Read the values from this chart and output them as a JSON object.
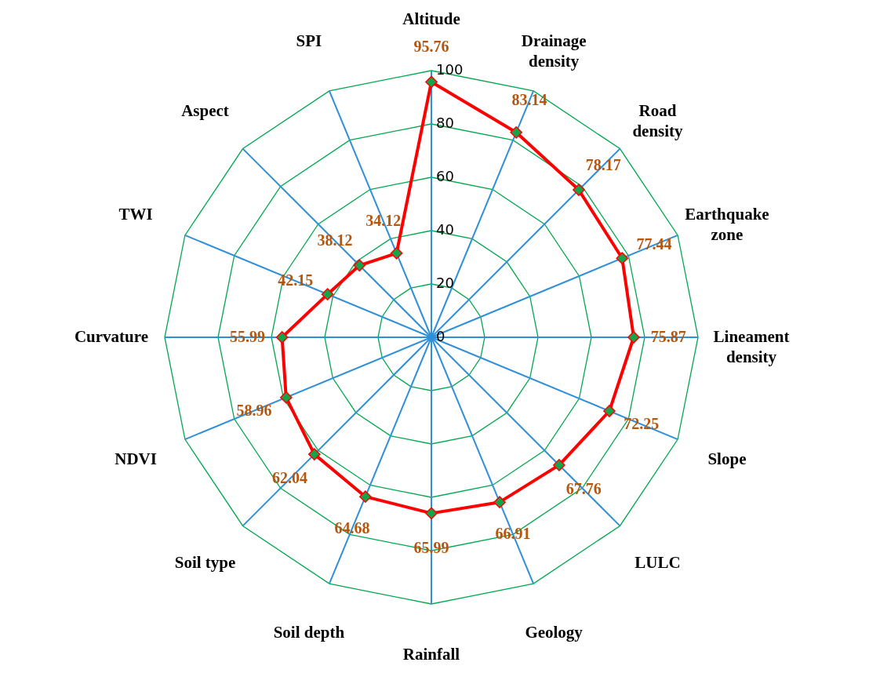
{
  "chart_data": {
    "type": "radar",
    "categories": [
      "Altitude",
      "Drainage density",
      "Road density",
      "Earthquake zone",
      "Lineament density",
      "Slope",
      "LULC",
      "Geology",
      "Rainfall",
      "Soil depth",
      "Soil type",
      "NDVI",
      "Curvature",
      "TWI",
      "Aspect",
      "SPI"
    ],
    "series": [
      {
        "color": "#ff0000",
        "values": [
          95.76,
          83.14,
          78.17,
          77.44,
          75.87,
          72.25,
          67.76,
          66.91,
          65.99,
          64.68,
          62.04,
          58.96,
          55.99,
          42.15,
          38.12,
          34.12
        ]
      }
    ],
    "ylim": [
      0,
      100
    ],
    "yticks": [
      0,
      20,
      40,
      60,
      80,
      100
    ],
    "grid": true,
    "marker": "diamond",
    "line_style": "solid",
    "data_labels": true
  }
}
